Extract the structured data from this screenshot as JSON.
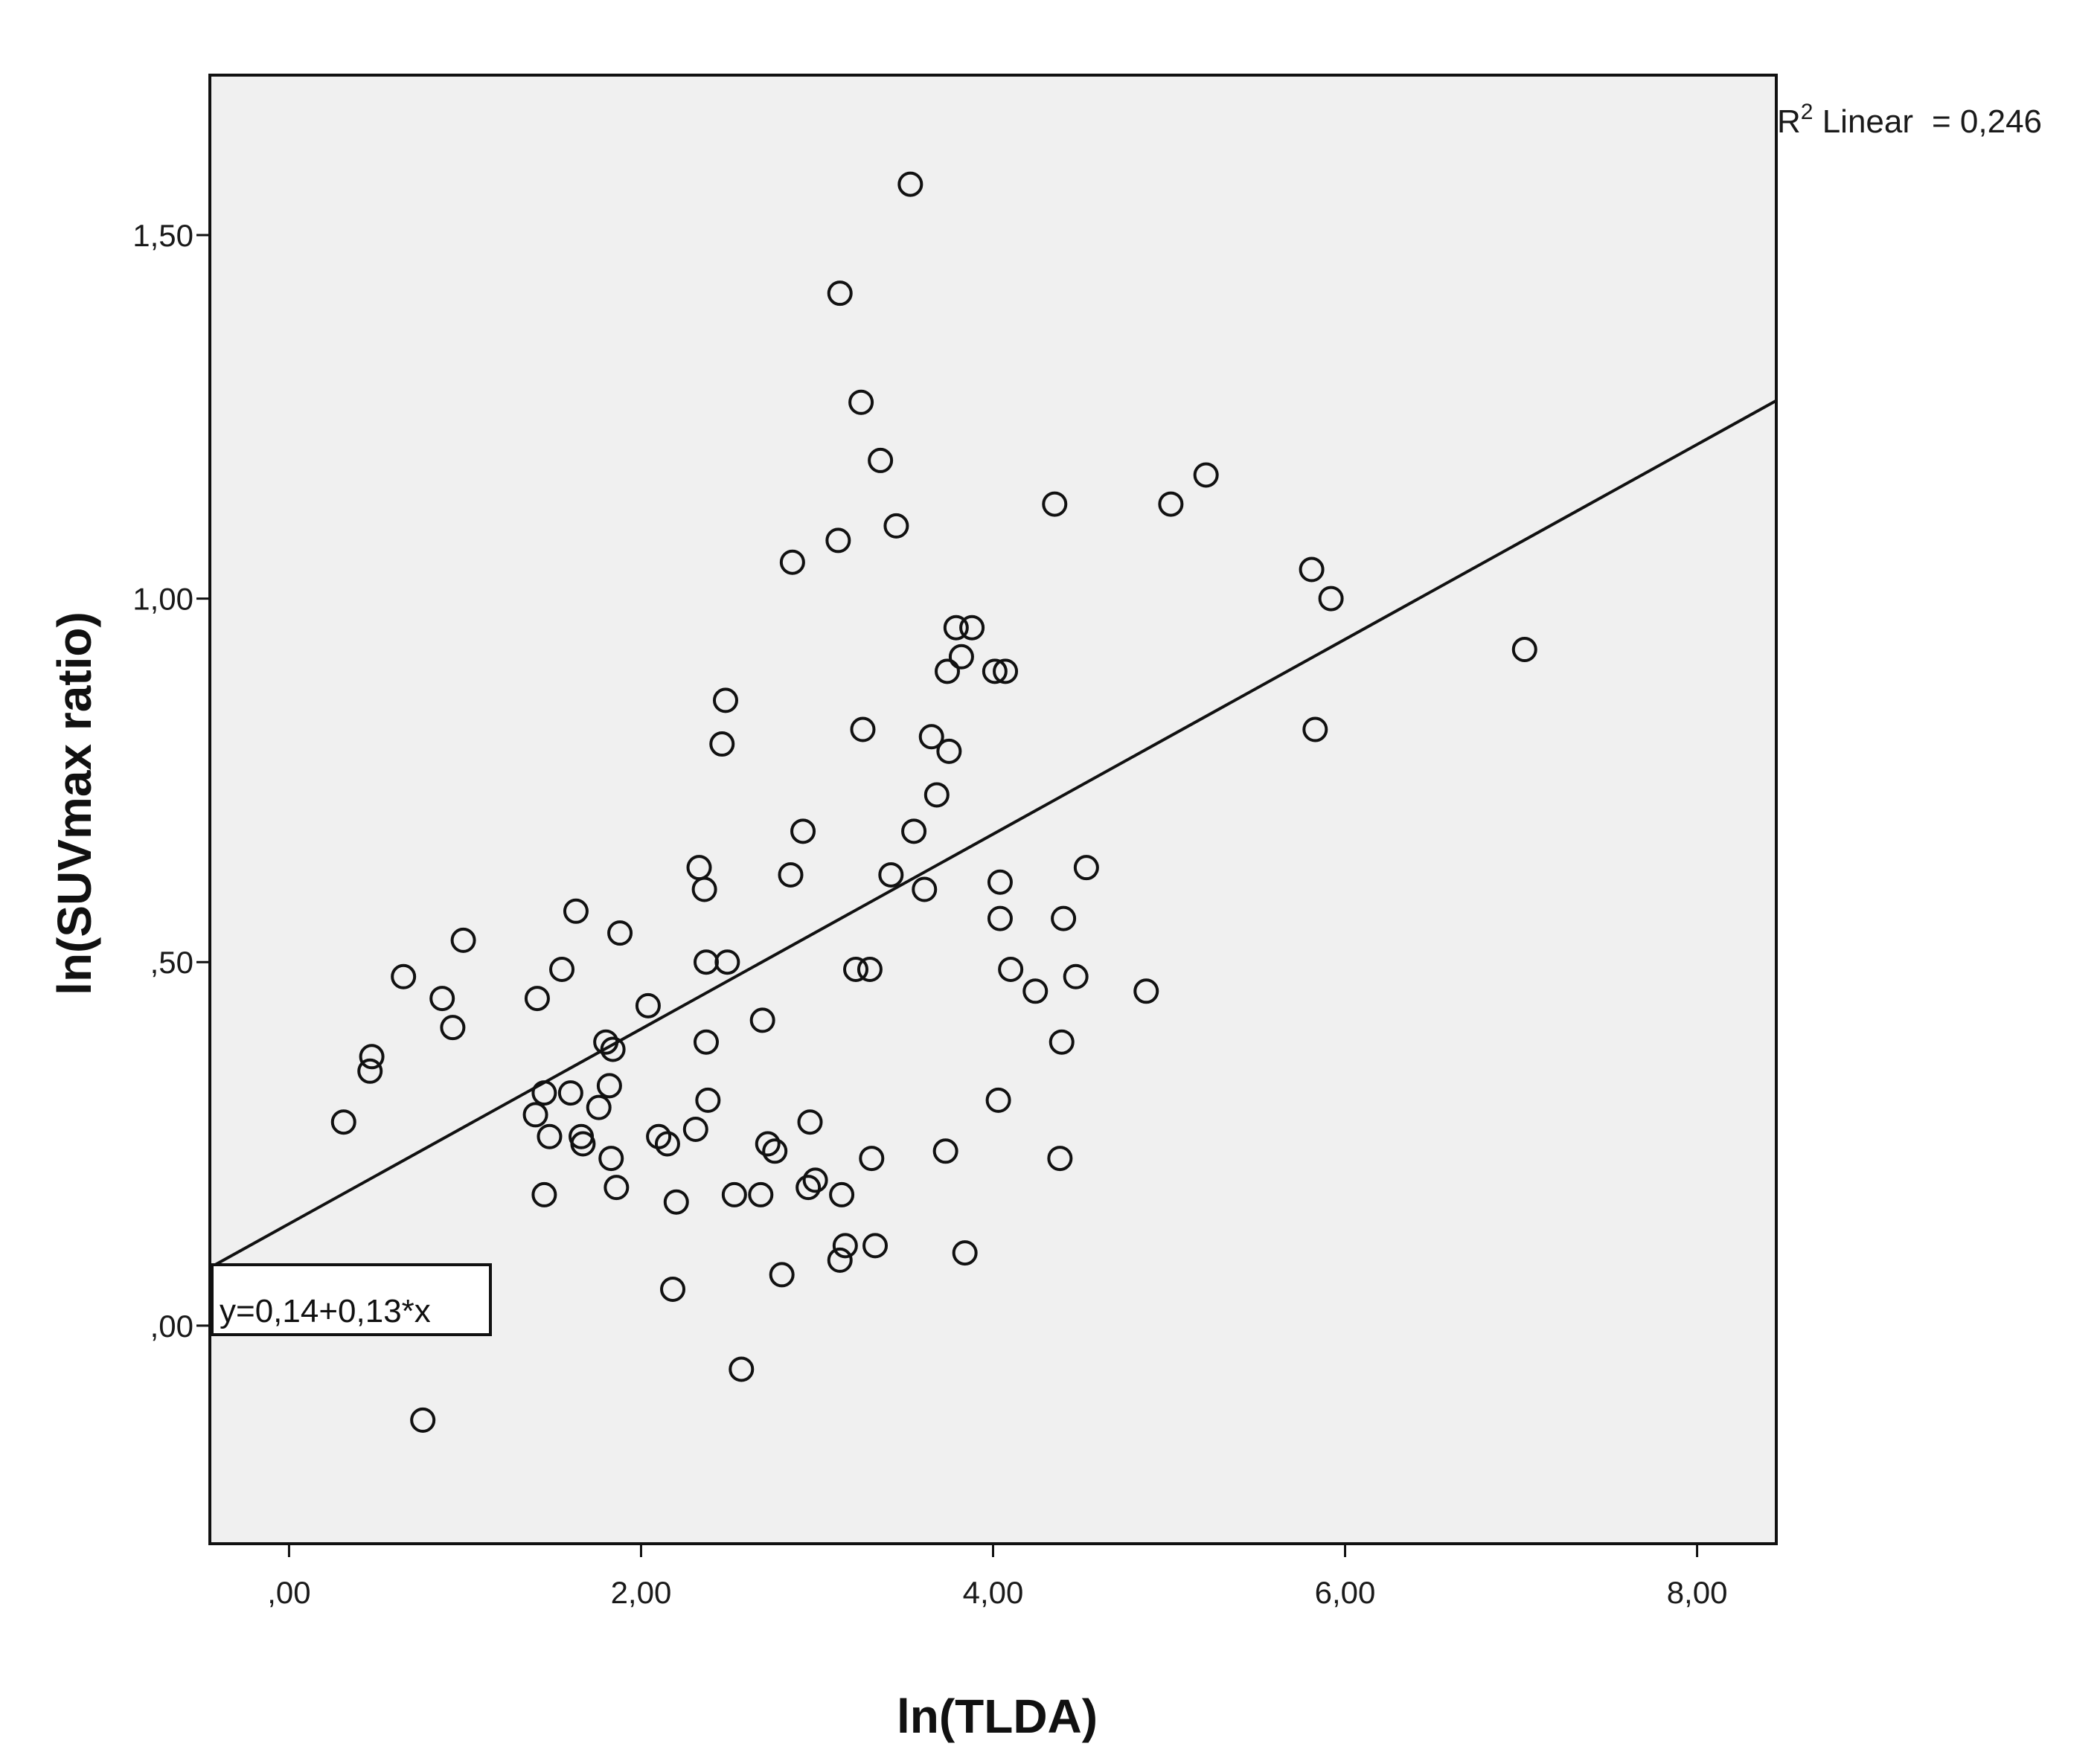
{
  "chart_data": {
    "type": "scatter",
    "title": "",
    "xlabel": "ln(TLDA)",
    "ylabel": "ln(SUVmax ratio)",
    "xlim": [
      -0.45,
      8.45
    ],
    "ylim": [
      -0.3,
      1.72
    ],
    "x_ticks": [
      {
        "value": 0,
        "label": ",00"
      },
      {
        "value": 2,
        "label": "2,00"
      },
      {
        "value": 4,
        "label": "4,00"
      },
      {
        "value": 6,
        "label": "6,00"
      },
      {
        "value": 8,
        "label": "8,00"
      }
    ],
    "y_ticks": [
      {
        "value": 0,
        "label": ",00"
      },
      {
        "value": 0.5,
        "label": ",50"
      },
      {
        "value": 1.0,
        "label": "1,00"
      },
      {
        "value": 1.5,
        "label": "1,50"
      }
    ],
    "grid": false,
    "background_color": "#f0f0f0",
    "marker_color": "#111111",
    "fit_line": {
      "intercept": 0.14,
      "slope": 0.134,
      "equation_label": "y=0,14+0,13*x"
    },
    "r2": {
      "prefix": "R",
      "superscript": "2",
      "label": " Linear",
      "value_text": "= 0,246"
    },
    "points": [
      [
        3.53,
        1.57
      ],
      [
        3.13,
        1.42
      ],
      [
        3.25,
        1.27
      ],
      [
        3.36,
        1.19
      ],
      [
        3.12,
        1.08
      ],
      [
        3.45,
        1.1
      ],
      [
        2.86,
        1.05
      ],
      [
        4.35,
        1.13
      ],
      [
        5.01,
        1.13
      ],
      [
        5.21,
        1.17
      ],
      [
        5.81,
        1.04
      ],
      [
        5.92,
        1.0
      ],
      [
        7.02,
        0.93
      ],
      [
        5.83,
        0.82
      ],
      [
        3.79,
        0.96
      ],
      [
        3.88,
        0.96
      ],
      [
        3.82,
        0.92
      ],
      [
        3.74,
        0.9
      ],
      [
        4.01,
        0.9
      ],
      [
        4.07,
        0.9
      ],
      [
        2.48,
        0.86
      ],
      [
        2.46,
        0.8
      ],
      [
        3.26,
        0.82
      ],
      [
        3.65,
        0.81
      ],
      [
        3.75,
        0.79
      ],
      [
        3.68,
        0.73
      ],
      [
        3.55,
        0.68
      ],
      [
        2.92,
        0.68
      ],
      [
        2.33,
        0.63
      ],
      [
        2.36,
        0.6
      ],
      [
        2.85,
        0.62
      ],
      [
        3.42,
        0.62
      ],
      [
        3.61,
        0.6
      ],
      [
        4.04,
        0.61
      ],
      [
        4.53,
        0.63
      ],
      [
        4.04,
        0.56
      ],
      [
        4.4,
        0.56
      ],
      [
        1.63,
        0.57
      ],
      [
        0.99,
        0.53
      ],
      [
        1.88,
        0.54
      ],
      [
        2.49,
        0.5
      ],
      [
        2.37,
        0.5
      ],
      [
        1.55,
        0.49
      ],
      [
        0.65,
        0.48
      ],
      [
        3.22,
        0.49
      ],
      [
        3.3,
        0.49
      ],
      [
        4.1,
        0.49
      ],
      [
        4.47,
        0.48
      ],
      [
        4.24,
        0.46
      ],
      [
        4.87,
        0.46
      ],
      [
        1.41,
        0.45
      ],
      [
        0.87,
        0.45
      ],
      [
        2.04,
        0.44
      ],
      [
        2.69,
        0.42
      ],
      [
        0.93,
        0.41
      ],
      [
        1.8,
        0.39
      ],
      [
        1.84,
        0.38
      ],
      [
        2.37,
        0.39
      ],
      [
        4.39,
        0.39
      ],
      [
        0.47,
        0.37
      ],
      [
        0.46,
        0.35
      ],
      [
        1.82,
        0.33
      ],
      [
        1.6,
        0.32
      ],
      [
        1.45,
        0.32
      ],
      [
        2.38,
        0.31
      ],
      [
        4.03,
        0.31
      ],
      [
        1.76,
        0.3
      ],
      [
        1.4,
        0.29
      ],
      [
        0.31,
        0.28
      ],
      [
        2.96,
        0.28
      ],
      [
        2.31,
        0.27
      ],
      [
        2.1,
        0.26
      ],
      [
        1.48,
        0.26
      ],
      [
        1.66,
        0.26
      ],
      [
        1.67,
        0.25
      ],
      [
        2.15,
        0.25
      ],
      [
        2.72,
        0.25
      ],
      [
        2.76,
        0.24
      ],
      [
        3.73,
        0.24
      ],
      [
        1.83,
        0.23
      ],
      [
        3.31,
        0.23
      ],
      [
        4.38,
        0.23
      ],
      [
        2.99,
        0.2
      ],
      [
        2.95,
        0.19
      ],
      [
        3.14,
        0.18
      ],
      [
        1.86,
        0.19
      ],
      [
        1.45,
        0.18
      ],
      [
        2.2,
        0.17
      ],
      [
        2.53,
        0.18
      ],
      [
        2.68,
        0.18
      ],
      [
        3.16,
        0.11
      ],
      [
        3.33,
        0.11
      ],
      [
        3.84,
        0.1
      ],
      [
        3.13,
        0.09
      ],
      [
        2.8,
        0.07
      ],
      [
        2.18,
        0.05
      ],
      [
        2.57,
        -0.06
      ],
      [
        0.76,
        -0.13
      ]
    ]
  }
}
